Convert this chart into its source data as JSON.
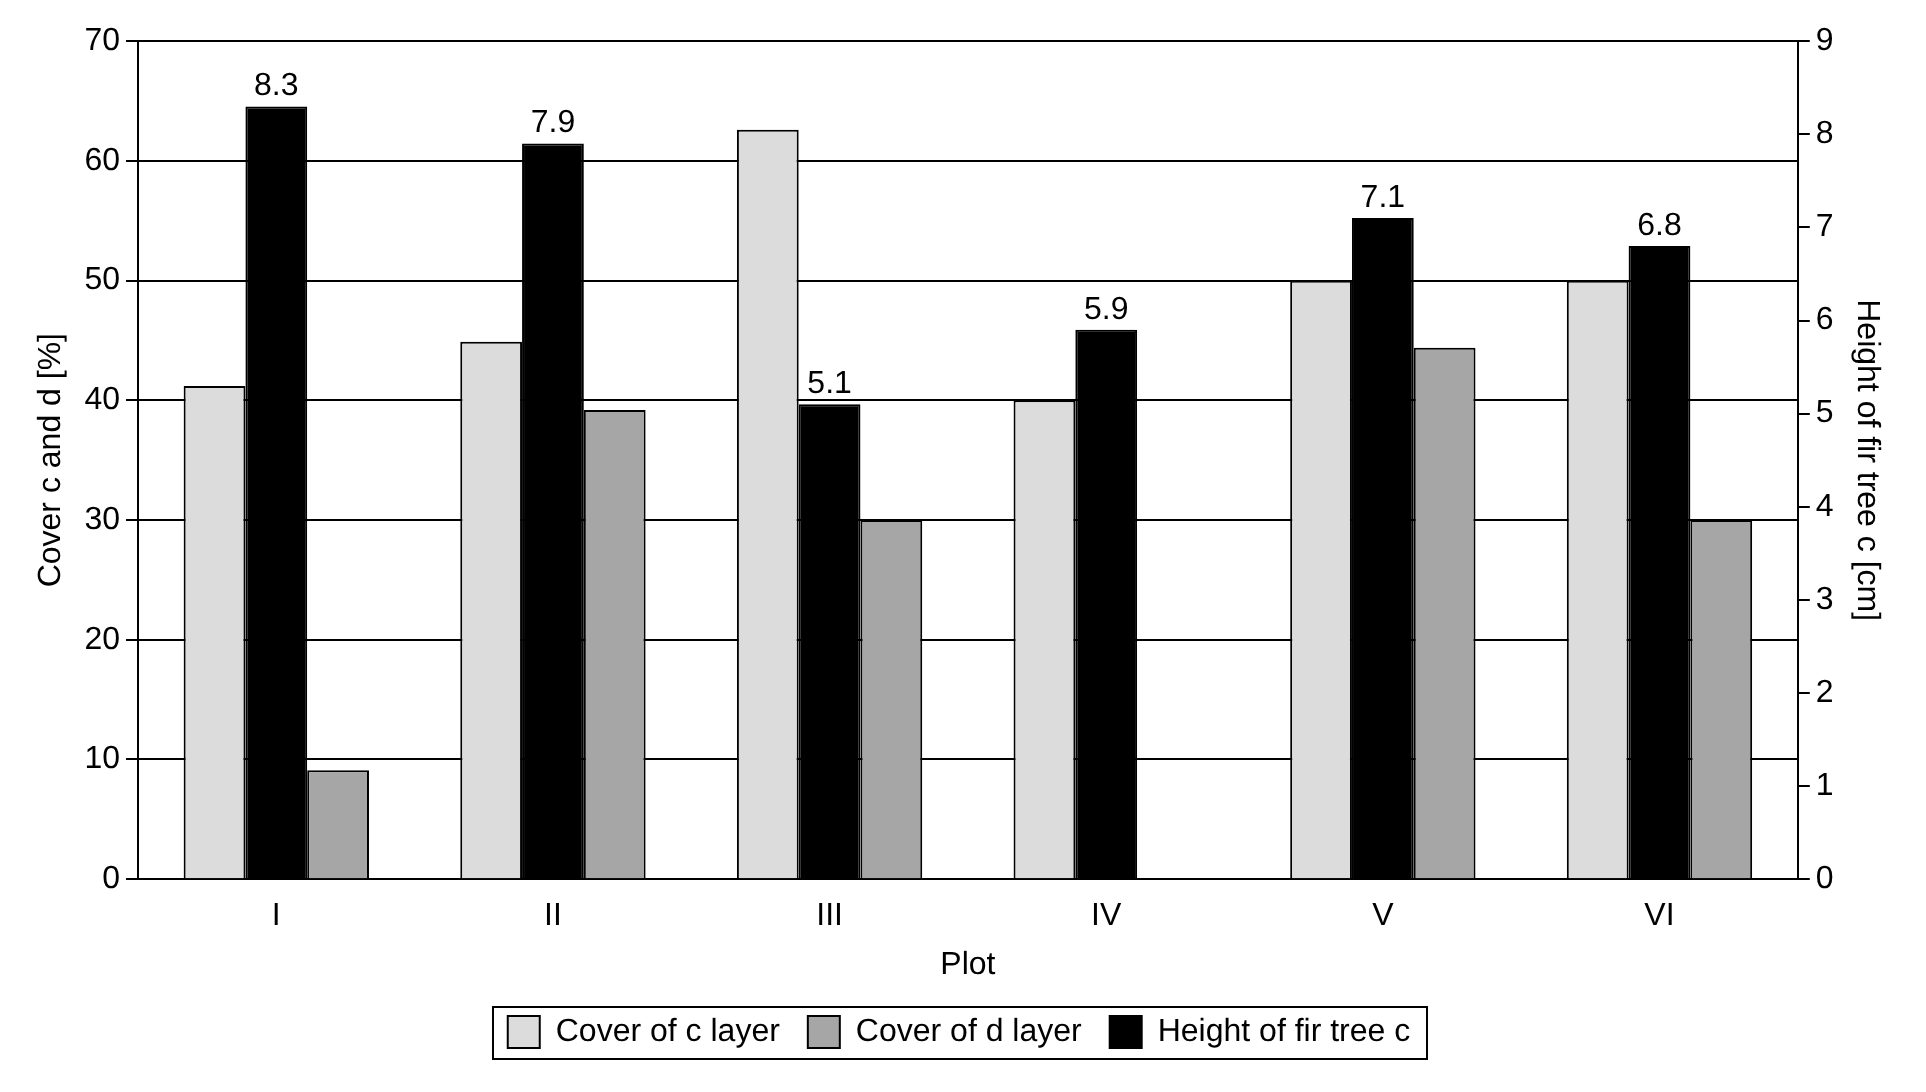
{
  "chart_data": {
    "type": "bar",
    "categories": [
      "I",
      "II",
      "III",
      "IV",
      "V",
      "VI"
    ],
    "xlabel": "Plot",
    "ylabel": "Cover c and d [%]",
    "y2label": "Height of fir tree c [cm]",
    "series": [
      {
        "name": "Cover of c layer",
        "color": "#dcdcdc",
        "values": [
          41.2,
          44.9,
          62.6,
          40,
          50,
          50
        ]
      },
      {
        "name": "Height of fir tree c",
        "color": "#000000",
        "axis": "y2",
        "values": [
          8.3,
          7.9,
          5.1,
          5.9,
          7.1,
          6.8
        ],
        "value_labels": [
          "8.3",
          "7.9",
          "5.1",
          "5.9",
          "7.1",
          "6.8"
        ]
      },
      {
        "name": "Cover of d layer",
        "color": "#a6a6a6",
        "values": [
          9.1,
          39.2,
          30,
          null,
          44.4,
          30
        ]
      }
    ],
    "ylim": [
      0,
      70
    ],
    "yticks": [
      0,
      10,
      20,
      30,
      40,
      50,
      60,
      70
    ],
    "y2lim": [
      0,
      9
    ],
    "y2ticks": [
      0,
      1,
      2,
      3,
      4,
      5,
      6,
      7,
      8,
      9
    ],
    "grid": "y",
    "legend": "bottom"
  }
}
